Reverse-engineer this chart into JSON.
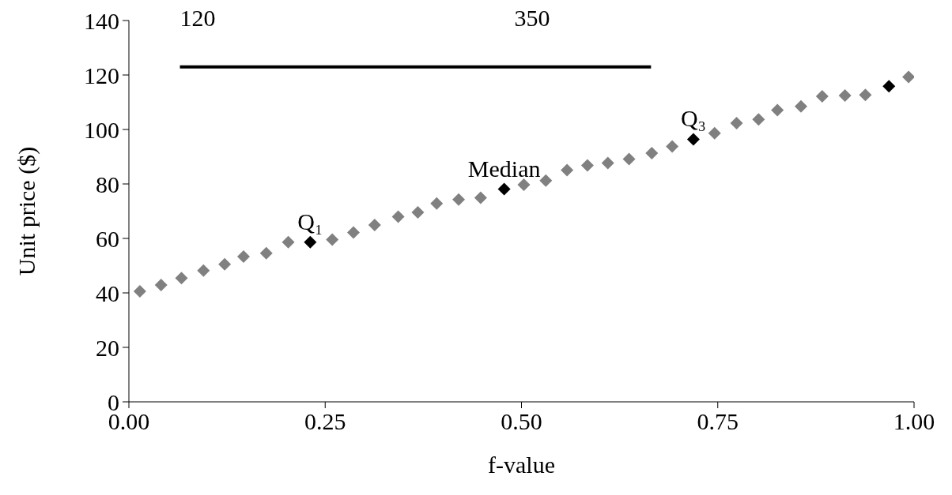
{
  "chart_data": {
    "type": "scatter",
    "xlabel": "f-value",
    "ylabel": "Unit price ($)",
    "xlim": [
      0,
      1
    ],
    "xticks": [
      {
        "value": 0,
        "label": "0.00"
      },
      {
        "value": 0.25,
        "label": "0.25"
      },
      {
        "value": 0.5,
        "label": "0.50"
      },
      {
        "value": 0.75,
        "label": "0.75"
      },
      {
        "value": 1,
        "label": "1.00"
      }
    ],
    "ylim": [
      0,
      140
    ],
    "yticks": [
      0,
      20,
      40,
      60,
      80,
      100,
      120,
      140
    ],
    "marker": "diamond",
    "series": [
      {
        "type": "scatter",
        "color": "#808080",
        "x": [
          0.014,
          0.041,
          0.067,
          0.095,
          0.122,
          0.146,
          0.175,
          0.203,
          0.259,
          0.286,
          0.313,
          0.343,
          0.368,
          0.392,
          0.42,
          0.448,
          0.503,
          0.531,
          0.558,
          0.584,
          0.61,
          0.637,
          0.666,
          0.692,
          0.746,
          0.774,
          0.802,
          0.826,
          0.856,
          0.883,
          0.912,
          0.938,
          0.993
        ],
        "values": [
          40.6,
          42.9,
          45.4,
          48.2,
          50.5,
          53.3,
          54.6,
          58.6,
          59.6,
          62.2,
          64.9,
          68.0,
          69.6,
          72.8,
          74.3,
          74.9,
          79.7,
          81.2,
          85.1,
          86.8,
          87.7,
          89.1,
          91.3,
          93.8,
          98.6,
          102.3,
          103.7,
          107.1,
          108.5,
          112.2,
          112.5,
          112.7,
          119.3
        ]
      },
      {
        "type": "scatter",
        "color": "#000000",
        "x": [
          0.231,
          0.478,
          0.719,
          0.968
        ],
        "values": [
          58.6,
          78.1,
          96.4,
          115.9
        ]
      },
      {
        "type": "line",
        "color": "#000000",
        "marker": "none",
        "x": [
          0.065,
          0.665
        ],
        "values": [
          123,
          123
        ]
      }
    ],
    "annotations": [
      "120",
      "350",
      {
        "text": "Q₁",
        "x": 0.231,
        "y": 58.6
      },
      {
        "text": "Median",
        "x": 0.478,
        "y": 78.1
      },
      {
        "text": "Q₃",
        "x": 0.719,
        "y": 96.4
      }
    ]
  }
}
